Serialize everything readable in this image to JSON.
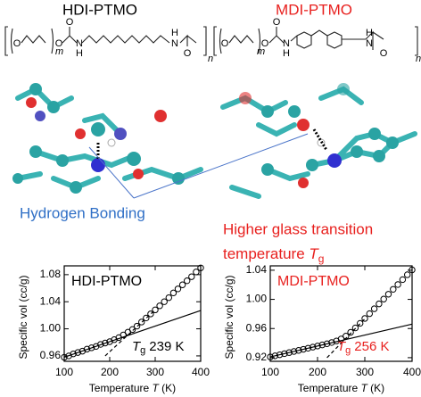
{
  "header": {
    "left": "HDI-PTMO",
    "right": "MDI-PTMO"
  },
  "structures": {
    "left": {
      "o1": "O",
      "m": "m",
      "o2": "O",
      "o3": "O",
      "n1": "N",
      "h1": "H",
      "n2": "N",
      "h2": "H",
      "o4": "O",
      "n": "n"
    },
    "right": {
      "o1": "O",
      "m": "m",
      "o2": "O",
      "o3": "O",
      "n1": "N",
      "h1": "H",
      "n2": "N",
      "h2": "H",
      "o4": "O",
      "n": "n"
    }
  },
  "annotations": {
    "hbond": "Hydrogen Bonding",
    "tg_line1": "Higher glass transition",
    "tg_line2": "temperature ",
    "tg_symbol": "T",
    "tg_subscript": "g"
  },
  "chart_data": [
    {
      "type": "scatter",
      "title": "HDI-PTMO",
      "title_color": "#000000",
      "y_label": "Specific vol (cc/g)",
      "x_label_parts": [
        "Temperature ",
        "T",
        " (K)"
      ],
      "tg_label": {
        "symbol": "T",
        "subscript": "g",
        "text": "239 K"
      },
      "x": [
        100,
        110,
        120,
        130,
        140,
        150,
        160,
        170,
        180,
        190,
        200,
        210,
        220,
        230,
        240,
        250,
        260,
        270,
        280,
        290,
        300,
        310,
        320,
        330,
        340,
        350,
        360,
        370,
        380,
        390,
        400
      ],
      "values": [
        0.958,
        0.96,
        0.963,
        0.965,
        0.967,
        0.97,
        0.972,
        0.974,
        0.977,
        0.979,
        0.981,
        0.984,
        0.987,
        0.991,
        0.995,
        0.999,
        1.004,
        1.01,
        1.016,
        1.022,
        1.028,
        1.034,
        1.04,
        1.046,
        1.053,
        1.059,
        1.065,
        1.071,
        1.077,
        1.084,
        1.09
      ],
      "color": "#000000",
      "fit_lines": [
        {
          "style": "solid",
          "x": [
            100,
            400
          ],
          "y": [
            0.958,
            1.027
          ]
        },
        {
          "style": "dashed",
          "x": [
            190,
            300
          ],
          "y": [
            0.96,
            1.028
          ]
        }
      ],
      "xlim": [
        100,
        400
      ],
      "ylim": [
        0.952,
        1.093
      ],
      "xticks": [
        100,
        200,
        300,
        400
      ],
      "yticks": [
        0.96,
        {
          "value": 1,
          "label": "1.00"
        },
        1.04,
        1.08
      ]
    },
    {
      "type": "scatter",
      "title": "MDI-PTMO",
      "title_color": "#e8201e",
      "y_label": "Specific vol (cc/g)",
      "x_label_parts": [
        "Temperature ",
        "T",
        " (K)"
      ],
      "tg_label": {
        "symbol": "T",
        "subscript": "g",
        "text": "256 K"
      },
      "x": [
        100,
        110,
        120,
        130,
        140,
        150,
        160,
        170,
        180,
        190,
        200,
        210,
        220,
        230,
        240,
        250,
        260,
        270,
        280,
        290,
        300,
        310,
        320,
        330,
        340,
        350,
        360,
        370,
        380,
        390,
        400
      ],
      "values": [
        0.921,
        0.9225,
        0.924,
        0.9255,
        0.927,
        0.9285,
        0.93,
        0.9315,
        0.933,
        0.9345,
        0.936,
        0.9375,
        0.9391,
        0.9408,
        0.9429,
        0.9457,
        0.9496,
        0.9548,
        0.9608,
        0.9671,
        0.9738,
        0.9804,
        0.9871,
        0.9938,
        1.0004,
        1.0071,
        1.0138,
        1.0204,
        1.0271,
        1.0338,
        1.0405
      ],
      "color": "#000000",
      "fit_lines": [
        {
          "style": "solid",
          "x": [
            100,
            400
          ],
          "y": [
            0.921,
            0.966
          ]
        },
        {
          "style": "dashed",
          "x": [
            220,
            300
          ],
          "y": [
            0.92,
            0.9733
          ]
        }
      ],
      "xlim": [
        100,
        400
      ],
      "ylim": [
        0.915,
        1.046
      ],
      "xticks": [
        100,
        200,
        300,
        400
      ],
      "yticks": [
        0.92,
        0.96,
        {
          "value": 1,
          "label": "1.00"
        },
        1.04
      ]
    }
  ]
}
